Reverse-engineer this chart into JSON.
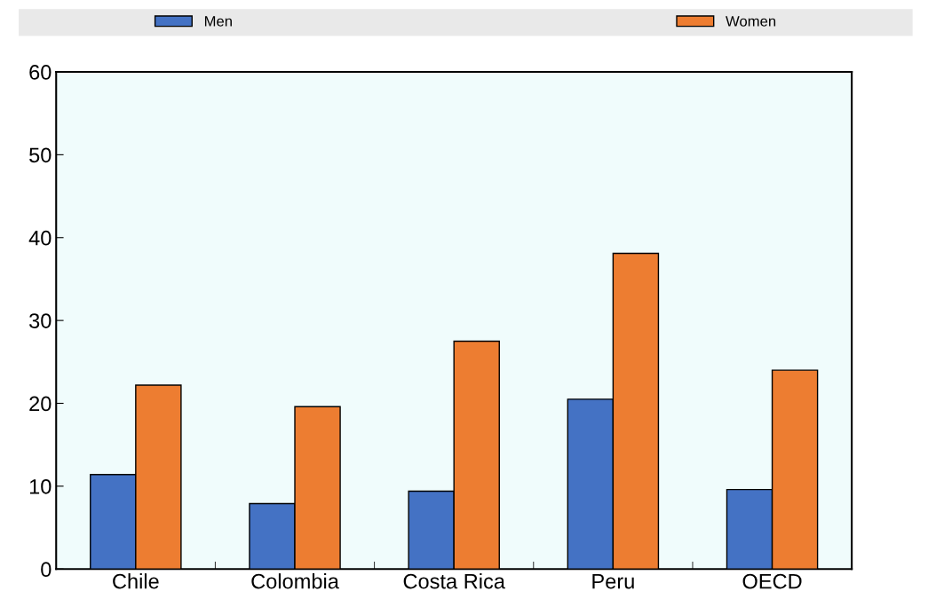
{
  "chart_data": {
    "type": "bar",
    "categories": [
      "Chile",
      "Colombia",
      "Costa Rica",
      "Peru",
      "OECD"
    ],
    "series": [
      {
        "name": "Men",
        "color": "#4472c4",
        "values": [
          11.4,
          7.9,
          9.4,
          20.5,
          9.6
        ]
      },
      {
        "name": "Women",
        "color": "#ed7d31",
        "values": [
          22.2,
          19.6,
          27.5,
          38.1,
          24.0
        ]
      }
    ],
    "ylim": [
      0,
      60
    ],
    "yticks": [
      0,
      10,
      20,
      30,
      40,
      50,
      60
    ],
    "grid": false,
    "legend": "top"
  }
}
